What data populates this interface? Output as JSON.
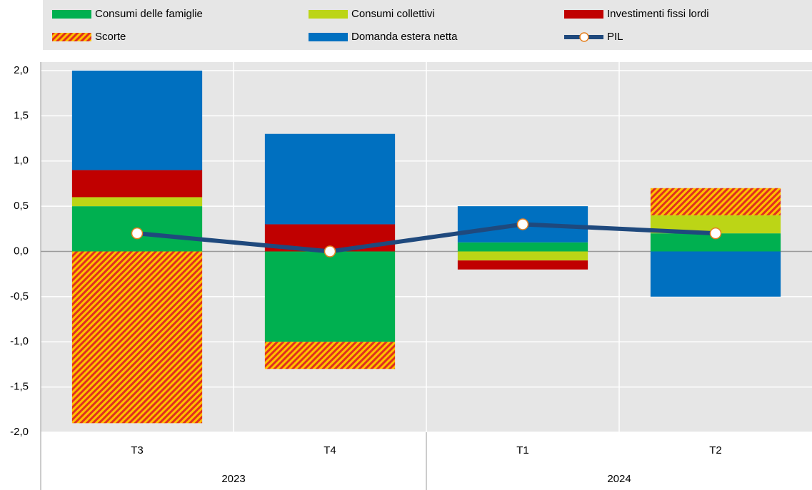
{
  "chart_data": {
    "type": "stacked-bar-line",
    "groups": [
      {
        "label": "2023",
        "categories": [
          "T3",
          "T4"
        ]
      },
      {
        "label": "2024",
        "categories": [
          "T1",
          "T2"
        ]
      }
    ],
    "series": [
      {
        "name": "Consumi delle famiglie",
        "color": "#00b050",
        "values": [
          0.5,
          -1.0,
          0.1,
          0.2
        ]
      },
      {
        "name": "Consumi collettivi",
        "color": "#bcd516",
        "values": [
          0.1,
          0,
          -0.1,
          0.2
        ]
      },
      {
        "name": "Investimenti fissi lordi",
        "color": "#c00000",
        "values": [
          0.3,
          0.3,
          -0.1,
          0
        ]
      },
      {
        "name": "Scorte",
        "color": "#e0301e",
        "hatch_color": "#ffc000",
        "pattern": "hatch",
        "values": [
          -1.9,
          -0.3,
          0,
          0.3
        ]
      },
      {
        "name": "Domanda estera netta",
        "color": "#0070c0",
        "values": [
          1.1,
          1.0,
          0.4,
          -0.5
        ]
      },
      {
        "name": "PIL",
        "type": "line",
        "color": "#1f497d",
        "marker_edge": "#e5801f",
        "values": [
          0.2,
          0.0,
          0.3,
          0.2
        ]
      }
    ],
    "ylim": [
      -2,
      2
    ],
    "yticks": [
      {
        "value": -2,
        "label": "-2,0"
      },
      {
        "value": -1.5,
        "label": "-1,5"
      },
      {
        "value": -1,
        "label": "-1,0"
      },
      {
        "value": -0.5,
        "label": "-0,5"
      },
      {
        "value": 0,
        "label": "0,0"
      },
      {
        "value": 0.5,
        "label": "0,5"
      },
      {
        "value": 1,
        "label": "1,0"
      },
      {
        "value": 1.5,
        "label": "1,5"
      },
      {
        "value": 2,
        "label": "2,0"
      }
    ],
    "grid": true,
    "legend": "top"
  }
}
